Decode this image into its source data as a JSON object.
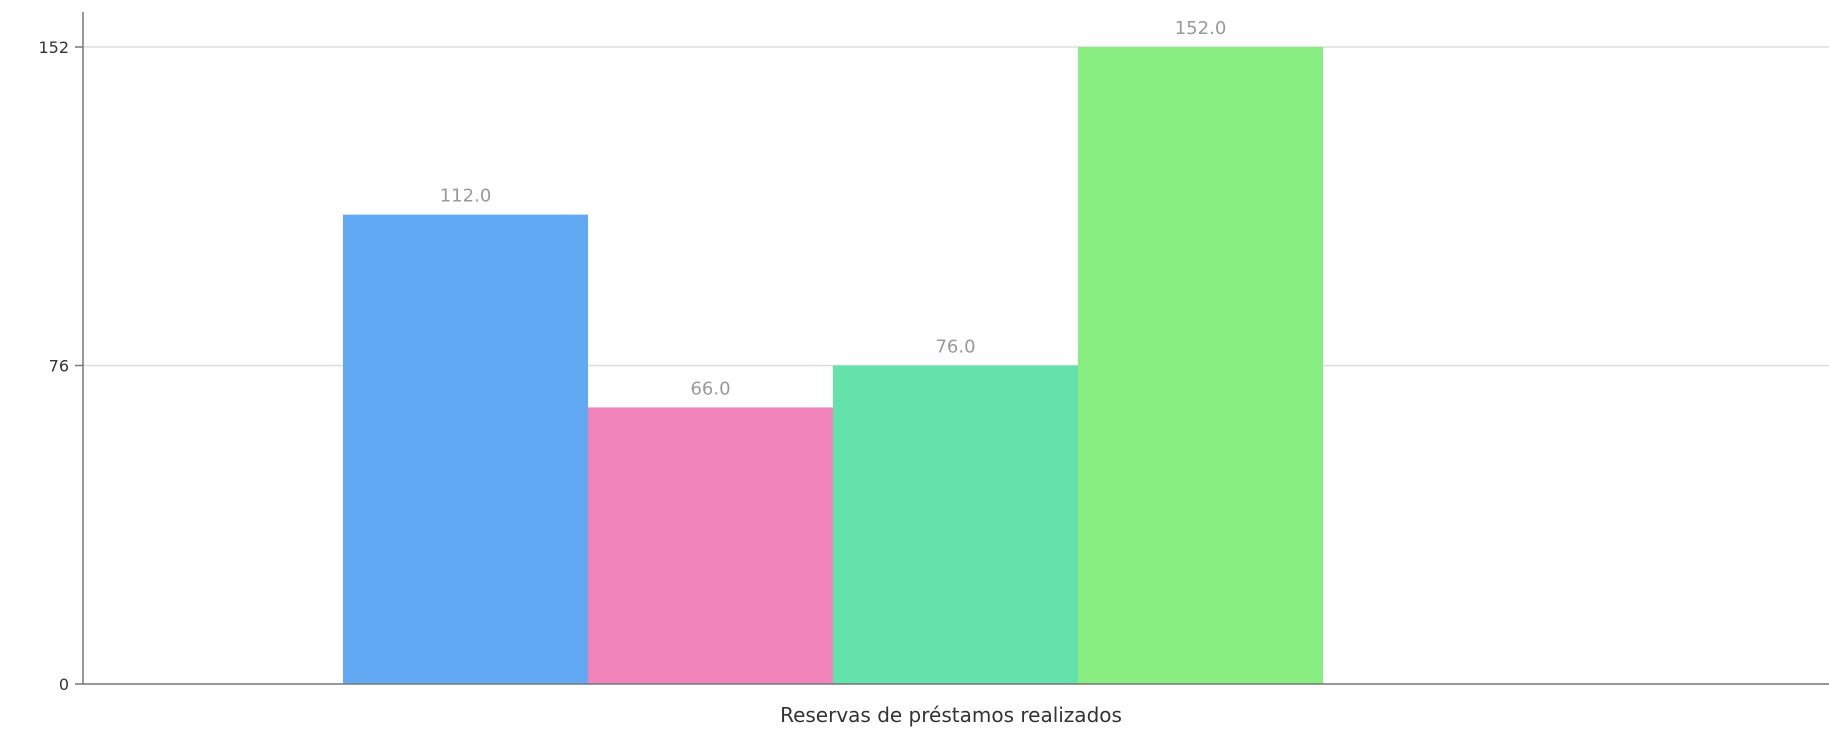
{
  "chart_data": {
    "type": "bar",
    "categories": [
      "Reservas de préstamos realizados"
    ],
    "series": [
      {
        "values": [
          112.0
        ],
        "value_label": "112.0",
        "color": "#62a9f4"
      },
      {
        "values": [
          66.0
        ],
        "value_label": "66.0",
        "color": "#f185bb"
      },
      {
        "values": [
          76.0
        ],
        "value_label": "76.0",
        "color": "#63e3ab"
      },
      {
        "values": [
          152.0
        ],
        "value_label": "152.0",
        "color": "#88ee82"
      }
    ],
    "yticks": [
      {
        "value": 0,
        "label": "0"
      },
      {
        "value": 76,
        "label": "76"
      },
      {
        "value": 152,
        "label": "152"
      }
    ],
    "ylim": [
      0,
      152
    ],
    "grid": true,
    "legend": false
  }
}
